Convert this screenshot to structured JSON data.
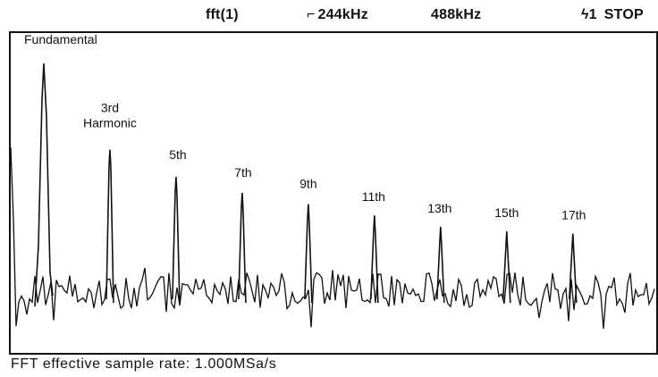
{
  "header": {
    "function": "fft(1)",
    "center_freq": "244kHz",
    "span": "488kHz",
    "trigger": "1",
    "run_state": "STOP",
    "trigger_glyph": "⌐",
    "trigger_slope_glyph": "ϟ"
  },
  "footer": {
    "sample_rate_label": "FFT effective sample rate:",
    "sample_rate_value": "1.000MSa/s"
  },
  "chart_data": {
    "type": "line",
    "title": "",
    "xlabel": "",
    "ylabel": "",
    "grid": false,
    "x_unit": "kHz",
    "xlim": [
      0,
      488
    ],
    "peaks": [
      {
        "label": "Fundamental",
        "harmonic": 1,
        "freq_khz": 25
      },
      {
        "label": "3rd Harmonic",
        "harmonic": 3,
        "freq_khz": 75
      },
      {
        "label": "5th",
        "harmonic": 5,
        "freq_khz": 125
      },
      {
        "label": "7th",
        "harmonic": 7,
        "freq_khz": 175
      },
      {
        "label": "9th",
        "harmonic": 9,
        "freq_khz": 225
      },
      {
        "label": "11th",
        "harmonic": 11,
        "freq_khz": 275
      },
      {
        "label": "13th",
        "harmonic": 13,
        "freq_khz": 325
      },
      {
        "label": "15th",
        "harmonic": 15,
        "freq_khz": 375
      },
      {
        "label": "17th",
        "harmonic": 17,
        "freq_khz": 425
      }
    ],
    "relative_peak_heights": [
      1.0,
      0.62,
      0.5,
      0.43,
      0.38,
      0.33,
      0.28,
      0.26,
      0.25
    ]
  }
}
